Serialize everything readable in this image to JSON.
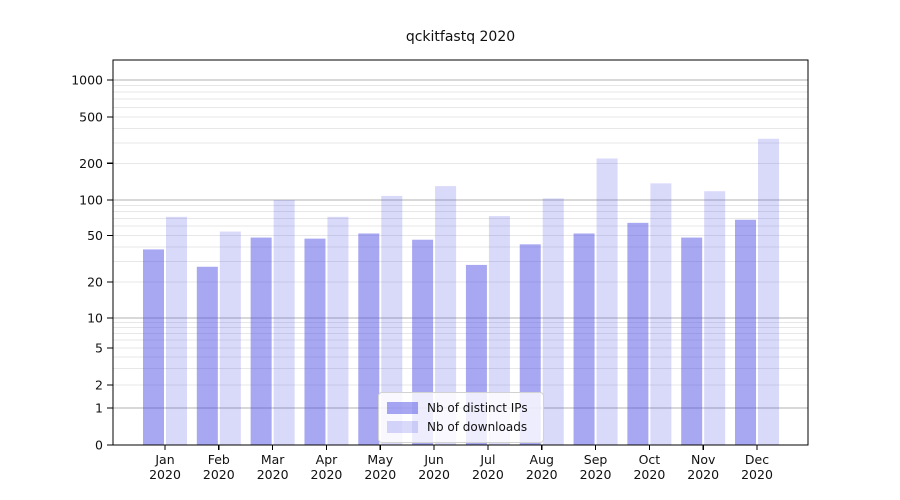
{
  "chart_data": {
    "type": "bar",
    "title": "qckitfastq 2020",
    "categories": [
      "Jan",
      "Feb",
      "Mar",
      "Apr",
      "May",
      "Jun",
      "Jul",
      "Aug",
      "Sep",
      "Oct",
      "Nov",
      "Dec"
    ],
    "category_year": "2020",
    "series": [
      {
        "name": "Nb of distinct IPs",
        "color": "rgba(80,80,230,0.5)",
        "values": [
          38,
          27,
          48,
          47,
          52,
          46,
          28,
          42,
          52,
          64,
          48,
          68
        ]
      },
      {
        "name": "Nb of downloads",
        "color": "rgba(80,80,230,0.22)",
        "values": [
          72,
          54,
          100,
          72,
          108,
          130,
          73,
          103,
          220,
          137,
          118,
          325
        ]
      }
    ],
    "yscale": "log with 0 baseline",
    "yticks": [
      0,
      1,
      2,
      5,
      10,
      20,
      50,
      100,
      200,
      500,
      1000
    ],
    "grid": "horizontal major and log-minor gridlines",
    "legend_position": "bottom center, inside plot",
    "colors": {
      "bar_dark_on_white": "#a7a7f2",
      "bar_light_on_white": "#d8d8f9",
      "major_grid": "#b0b0b0",
      "minor_grid": "#e7e7e7",
      "axis": "#000000"
    }
  }
}
